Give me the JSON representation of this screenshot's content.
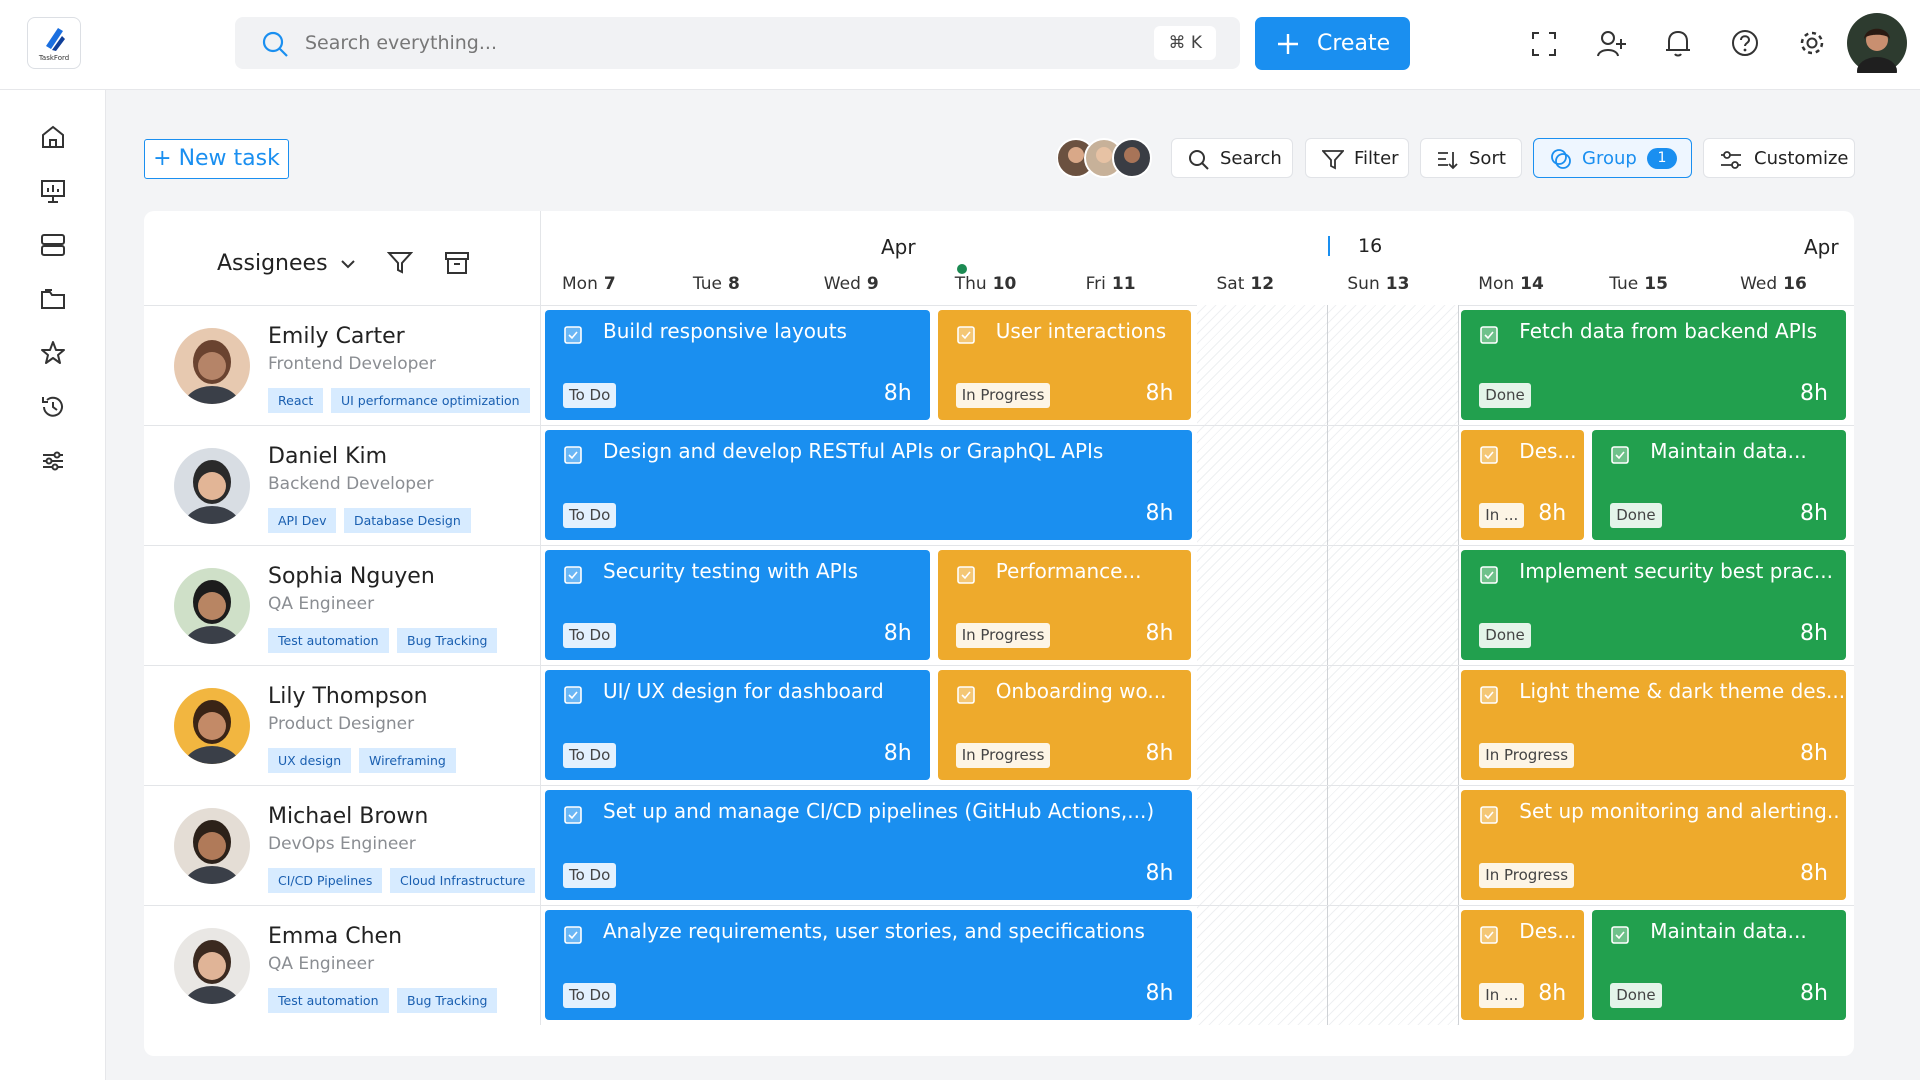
{
  "header": {
    "logo": "TaskFord",
    "search_placeholder": "Search everything...",
    "shortcut": "⌘ K",
    "create": "Create"
  },
  "toolbar": {
    "new_task": "+ New task",
    "search": "Search",
    "filter": "Filter",
    "sort": "Sort",
    "group": "Group",
    "group_count": "1",
    "customize": "Customize"
  },
  "timeline": {
    "assignees_label": "Assignees",
    "month_left": "Apr",
    "week": "16",
    "month_right": "Apr",
    "days": [
      {
        "weekday": "Mon",
        "day": "7"
      },
      {
        "weekday": "Tue",
        "day": "8"
      },
      {
        "weekday": "Wed",
        "day": "9"
      },
      {
        "weekday": "Thu",
        "day": "10"
      },
      {
        "weekday": "Fri",
        "day": "11"
      },
      {
        "weekday": "Sat",
        "day": "12"
      },
      {
        "weekday": "Sun",
        "day": "13"
      },
      {
        "weekday": "Mon",
        "day": "14"
      },
      {
        "weekday": "Tue",
        "day": "15"
      },
      {
        "weekday": "Wed",
        "day": "16"
      }
    ],
    "rows": [
      {
        "name": "Emily Carter",
        "role": "Frontend Developer",
        "tags": [
          "React",
          "UI performance optimization"
        ],
        "tasks": [
          {
            "title": "Build responsive layouts",
            "status": "To Do",
            "hours": "8h",
            "color": "#1a8ff0"
          },
          {
            "title": "User interactions",
            "status": "In Progress",
            "hours": "8h",
            "color": "#eeaa2c"
          },
          {
            "title": "Fetch data from backend APIs",
            "status": "Done",
            "hours": "8h",
            "color": "#22a04e"
          }
        ]
      },
      {
        "name": "Daniel Kim",
        "role": "Backend Developer",
        "tags": [
          "API Dev",
          "Database Design"
        ],
        "tasks": [
          {
            "title": "Design and develop RESTful APIs or GraphQL APIs",
            "status": "To Do",
            "hours": "8h",
            "color": "#1a8ff0"
          },
          {
            "title": "Des...",
            "status": "In ...",
            "hours": "8h",
            "color": "#eeaa2c"
          },
          {
            "title": "Maintain data...",
            "status": "Done",
            "hours": "8h",
            "color": "#22a04e"
          }
        ]
      },
      {
        "name": "Sophia Nguyen",
        "role": "QA Engineer",
        "tags": [
          "Test automation",
          "Bug Tracking"
        ],
        "tasks": [
          {
            "title": "Security testing with APIs",
            "status": "To Do",
            "hours": "8h",
            "color": "#1a8ff0"
          },
          {
            "title": "Performance...",
            "status": "In Progress",
            "hours": "8h",
            "color": "#eeaa2c"
          },
          {
            "title": "Implement security best prac...",
            "status": "Done",
            "hours": "8h",
            "color": "#22a04e"
          }
        ]
      },
      {
        "name": "Lily Thompson",
        "role": "Product Designer",
        "tags": [
          "UX design",
          "Wireframing"
        ],
        "tasks": [
          {
            "title": "UI/ UX design for dashboard",
            "status": "To Do",
            "hours": "8h",
            "color": "#1a8ff0"
          },
          {
            "title": "Onboarding wo...",
            "status": "In Progress",
            "hours": "8h",
            "color": "#eeaa2c"
          },
          {
            "title": "Light theme & dark theme des...",
            "status": "In Progress",
            "hours": "8h",
            "color": "#eeaa2c"
          }
        ]
      },
      {
        "name": "Michael Brown",
        "role": "DevOps Engineer",
        "tags": [
          "CI/CD Pipelines",
          "Cloud Infrastructure"
        ],
        "tasks": [
          {
            "title": "Set up and manage CI/CD pipelines (GitHub Actions,...)",
            "status": "To Do",
            "hours": "8h",
            "color": "#1a8ff0"
          },
          {
            "title": "Set up monitoring and alerting..",
            "status": "In Progress",
            "hours": "8h",
            "color": "#eeaa2c"
          }
        ]
      },
      {
        "name": "Emma Chen",
        "role": "QA Engineer",
        "tags": [
          "Test automation",
          "Bug Tracking"
        ],
        "tasks": [
          {
            "title": "Analyze requirements, user stories, and specifications",
            "status": "To Do",
            "hours": "8h",
            "color": "#1a8ff0"
          },
          {
            "title": "Des...",
            "status": "In ...",
            "hours": "8h",
            "color": "#eeaa2c"
          },
          {
            "title": "Maintain data...",
            "status": "Done",
            "hours": "8h",
            "color": "#22a04e"
          }
        ]
      }
    ]
  }
}
